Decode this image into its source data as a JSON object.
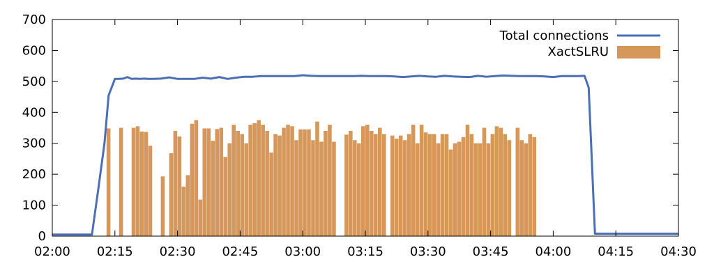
{
  "chart_data": {
    "type": "bar+line",
    "title": "",
    "xlabel": "",
    "ylabel": "",
    "xlim": [
      "02:00",
      "04:30"
    ],
    "ylim": [
      0,
      700
    ],
    "x_ticks": [
      "02:00",
      "02:15",
      "02:30",
      "02:45",
      "03:00",
      "03:15",
      "03:30",
      "03:45",
      "04:00",
      "04:15",
      "04:30"
    ],
    "y_ticks": [
      "0",
      "100",
      "200",
      "300",
      "400",
      "500",
      "600",
      "700"
    ],
    "grid": "none",
    "legend_position": "top-right",
    "series": [
      {
        "name": "Total connections",
        "kind": "line",
        "color": "#4a6fb5",
        "x_minutes": [
          0,
          9.5,
          11,
          12.5,
          13.5,
          15,
          16,
          17,
          18,
          19,
          20,
          21,
          22,
          23,
          24,
          26,
          28,
          30,
          32,
          34,
          36,
          38,
          40,
          42,
          44,
          46,
          48,
          50,
          52,
          54,
          56,
          58,
          60,
          62,
          64,
          66,
          68,
          70,
          72,
          74,
          76,
          78,
          80,
          82,
          84,
          86,
          88,
          90,
          92,
          94,
          96,
          98,
          100,
          102,
          104,
          106,
          108,
          110,
          112,
          114,
          116,
          118,
          120,
          122,
          124,
          126,
          127.5,
          128.5,
          130,
          150
        ],
        "values": [
          5,
          5,
          150,
          300,
          455,
          508,
          508,
          509,
          514,
          508,
          509,
          508,
          509,
          508,
          508,
          509,
          513,
          508,
          508,
          508,
          512,
          509,
          514,
          508,
          512,
          515,
          515,
          517,
          517,
          517,
          517,
          517,
          520,
          518,
          517,
          517,
          517,
          517,
          517,
          518,
          517,
          517,
          517,
          516,
          514,
          516,
          518,
          516,
          515,
          518,
          516,
          515,
          514,
          518,
          515,
          517,
          519,
          518,
          517,
          517,
          517,
          516,
          514,
          517,
          517,
          517,
          518,
          480,
          8,
          8
        ]
      },
      {
        "name": "XactSLRU",
        "kind": "bar",
        "color": "#d6975a",
        "bin_minutes": 1,
        "start_minutes": [
          13,
          16,
          18,
          19,
          20,
          21,
          22,
          23,
          24,
          25,
          26,
          28,
          29,
          30,
          31,
          32,
          33,
          34,
          35,
          36,
          37,
          38,
          39,
          40,
          41,
          42,
          43,
          44,
          45,
          46,
          47,
          48,
          49,
          50,
          51,
          52,
          53,
          54,
          55,
          56,
          57,
          58,
          59,
          60,
          61,
          62,
          63,
          64,
          65,
          66,
          67,
          68,
          69,
          70,
          71,
          72,
          73,
          74,
          75,
          76,
          77,
          78,
          79,
          80,
          81,
          82,
          83,
          84,
          85,
          86,
          87,
          88,
          89,
          90,
          91,
          92,
          93,
          94,
          95,
          96,
          97,
          98,
          99,
          100,
          101,
          102,
          103,
          104,
          105,
          106,
          107,
          108,
          109,
          110,
          111,
          112,
          113,
          114,
          115,
          116,
          117,
          118,
          119,
          120,
          121,
          122,
          123,
          124,
          125,
          126,
          127,
          128
        ],
        "values": [
          348,
          350,
          0,
          350,
          355,
          338,
          337,
          292,
          0,
          0,
          193,
          268,
          340,
          322,
          160,
          197,
          363,
          375,
          118,
          348,
          348,
          308,
          346,
          350,
          256,
          300,
          360,
          340,
          330,
          300,
          360,
          365,
          375,
          360,
          340,
          270,
          330,
          325,
          350,
          360,
          355,
          310,
          345,
          345,
          345,
          310,
          370,
          305,
          340,
          360,
          305,
          0,
          0,
          328,
          340,
          310,
          300,
          355,
          360,
          340,
          330,
          350,
          330,
          0,
          325,
          315,
          325,
          310,
          330,
          360,
          300,
          360,
          335,
          330,
          330,
          300,
          330,
          330,
          280,
          300,
          305,
          320,
          360,
          330,
          300,
          300,
          350,
          300,
          330,
          355,
          350,
          330,
          310,
          0,
          350,
          310,
          300,
          330,
          320,
          0,
          0,
          0,
          0,
          0,
          0,
          0,
          0,
          0,
          0,
          0,
          0,
          0
        ]
      }
    ]
  }
}
